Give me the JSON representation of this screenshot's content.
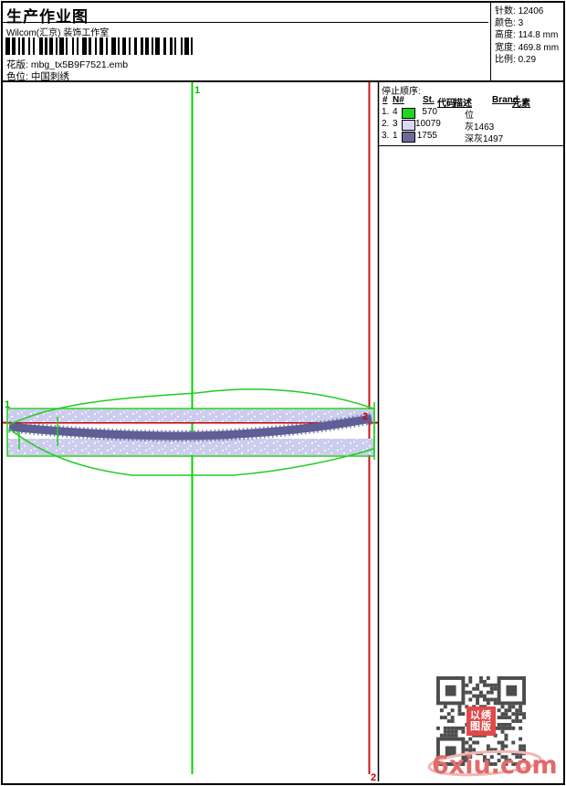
{
  "page": {
    "title": "生产作业图"
  },
  "header": {
    "studio": "Wilcom(汇京) 装饰工作室",
    "pattern_label": "花版:",
    "pattern_value": "mbg_tx5B9F7521.emb",
    "colorway_label": "色位:",
    "colorway_value": "中国刺绣",
    "stats": [
      {
        "label": "针数:",
        "value": "12406"
      },
      {
        "label": "颜色:",
        "value": "3"
      },
      {
        "label": "高度:",
        "value": "114.8 mm"
      },
      {
        "label": "宽度:",
        "value": "469.8 mm"
      },
      {
        "label": "比例:",
        "value": "0.29"
      }
    ]
  },
  "stop_table": {
    "title": "停止顺序:",
    "columns": {
      "seq": "#",
      "n": "N#",
      "st": "St.",
      "code": "代码",
      "desc": "描述",
      "brand": "Brand",
      "elem": "元素"
    },
    "rows": [
      {
        "seq": "1.",
        "n": "4",
        "color": "#22d422",
        "st": "570",
        "desc": "位"
      },
      {
        "seq": "2.",
        "n": "3",
        "color": "#d9d9f4",
        "st": "10079",
        "desc": "灰1463"
      },
      {
        "seq": "3.",
        "n": "1",
        "color": "#6b6b99",
        "st": "1755",
        "desc": "深灰1497"
      }
    ]
  },
  "canvas": {
    "marker_start": "1",
    "marker_end": "2",
    "colors": {
      "guide_green": "#00cc00",
      "guide_red": "#cc0000",
      "fill_lavender": "#ccccee",
      "fill_dark": "#5f5f96"
    }
  },
  "watermark": {
    "text": "6xiu.com",
    "seal_rows": [
      "以绣",
      "图版"
    ]
  }
}
